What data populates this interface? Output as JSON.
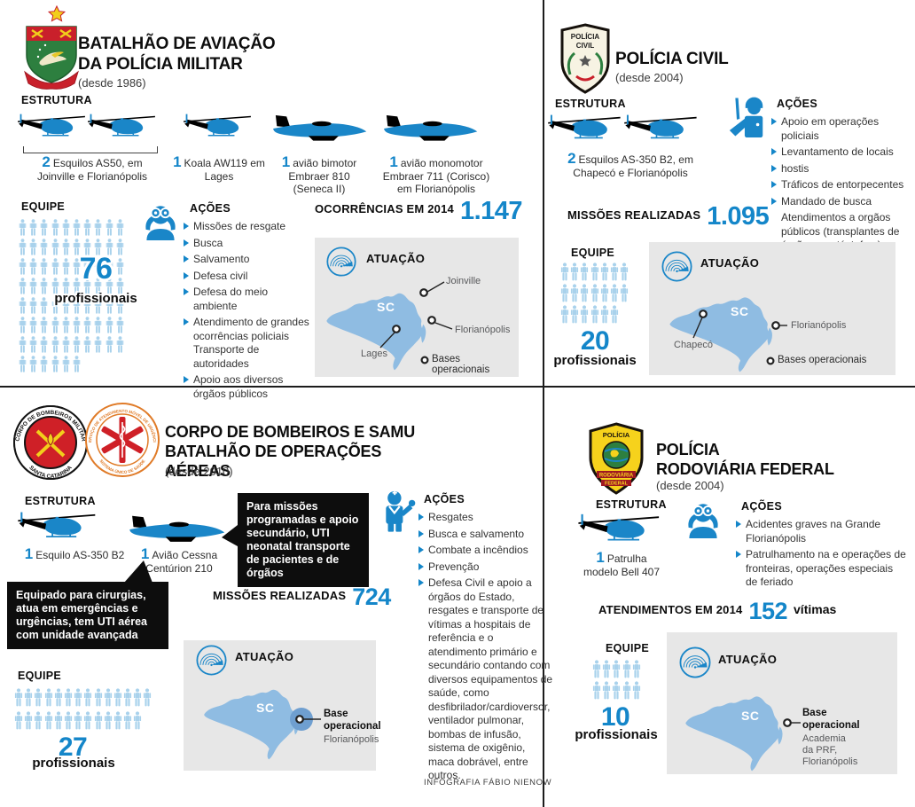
{
  "labels": {
    "estrutura": "ESTRUTURA",
    "equipe": "EQUIPE",
    "acoes": "AÇÕES",
    "atuacao": "ATUAÇÃO",
    "bases": "Bases operacionais",
    "profissionais": "profissionais",
    "sc": "SC"
  },
  "credit": "INFOGRAFIA FÁBIO NIENOW",
  "colors": {
    "accent_blue": "#1a86c8",
    "number_blue": "#1486c9",
    "person_blue": "#a9d2ec",
    "map_state_blue": "#8fbce2",
    "panel_gray": "#e7e7e7",
    "callout_black": "#0d0d0d",
    "badge_red": "#c9202b",
    "badge_green": "#2d7f3f",
    "badge_yellow": "#f6d21c"
  },
  "pm": {
    "title1": "BATALHÃO DE AVIAÇÃO",
    "title2": "DA POLÍCIA MILITAR",
    "since": "(desde 1986)",
    "fleet": [
      {
        "num": "2",
        "text": "Esquilos AS50, em Joinville e Florianópolis"
      },
      {
        "num": "1",
        "text": "Koala AW119 em Lages"
      },
      {
        "num": "1",
        "text": "avião bimotor Embraer 810 (Seneca II)"
      },
      {
        "num": "1",
        "text": "avião monomotor Embraer 711 (Corisco) em Florianópolis"
      }
    ],
    "team": {
      "count": "76",
      "rows": [
        10,
        10,
        10,
        10,
        10,
        10,
        10,
        6
      ]
    },
    "actions": [
      {
        "t": "Missões de resgate",
        "b": true
      },
      {
        "t": "Busca",
        "b": true
      },
      {
        "t": "Salvamento",
        "b": true
      },
      {
        "t": "Defesa civil",
        "b": true
      },
      {
        "t": "Defesa do meio ambiente",
        "b": true
      },
      {
        "t": "Atendimento de grandes ocorrências policiais Transporte de autoridades",
        "b": true
      },
      {
        "t": "Apoio aos diversos órgãos públicos",
        "b": true
      }
    ],
    "stat": {
      "label": "OCORRÊNCIAS EM 2014",
      "value": "1.147"
    },
    "map": {
      "joinville": "Joinville",
      "florianopolis": "Florianópolis",
      "lages": "Lages"
    }
  },
  "pc": {
    "title": "POLÍCIA CIVIL",
    "since": "(desde 2004)",
    "badge_line1": "POLÍCIA",
    "badge_line2": "CIVIL",
    "fleet": [
      {
        "num": "2",
        "text": "Esquilos AS-350 B2, em Chapecó e Florianópolis"
      }
    ],
    "team": {
      "count": "20",
      "rows": [
        7,
        7,
        6
      ]
    },
    "actions": [
      {
        "t": "Apoio em operações policiais",
        "b": true
      },
      {
        "t": "Levantamento de locais",
        "b": true
      },
      {
        "t": "hostis",
        "b": true
      },
      {
        "t": "Tráficos de entorpecentes",
        "b": true
      },
      {
        "t": "Mandado de busca",
        "b": true
      },
      {
        "t": "Atendimentos a orgãos públicos (transplantes de órgãos e catástofres)",
        "b": false
      }
    ],
    "stat": {
      "label": "MISSÕES REALIZADAS",
      "value": "1.095"
    },
    "map": {
      "chapeco": "Chapecó",
      "florianopolis": "Florianópolis"
    }
  },
  "cb": {
    "title1": "CORPO DE BOMBEIROS E SAMU",
    "title2": "BATALHÃO DE OPERAÇÕES AÉREAS",
    "since": "(desde 2010)",
    "badge_ring_top": "CORPO DE BOMBEIROS MILITAR",
    "badge_ring_bottom": "SANTA CATARINA",
    "samu_ring_top": "SERVIÇO DE ATENDIMENTO MÓVEL DE URGÊNCIA",
    "samu_ring_bottom": "SISTEMA ÚNICO DE SAÚDE",
    "fleet": [
      {
        "num": "1",
        "text": "Esquilo AS-350 B2"
      },
      {
        "num": "1",
        "text": "Avião Cessna Centúrion 210"
      }
    ],
    "callout_plane": "Para missões programadas e apoio secundário, UTI neonatal transporte de pacientes e de órgãos",
    "callout_heli": "Equipado para cirurgias, atua em emergências e urgências, tem UTI aérea com unidade avançada",
    "team": {
      "count": "27",
      "rows": [
        14,
        13
      ]
    },
    "actions": [
      {
        "t": "Resgates",
        "b": true
      },
      {
        "t": "Busca e salvamento",
        "b": true
      },
      {
        "t": "Combate a incêndios",
        "b": true
      },
      {
        "t": "Prevenção",
        "b": true
      },
      {
        "t": "Defesa Civil e apoio a órgãos do Estado, resgates e transporte de vítimas a hospitais de referência e o atendimento primário e secundário contando com diversos equipamentos de saúde, como desfibrilador/cardioversor, ventilador pulmonar, bombas de infusão, sistema de oxigênio, maca dobrável, entre outros.",
        "b": true
      }
    ],
    "stat": {
      "label": "MISSÕES REALIZADAS",
      "value": "724"
    },
    "map": {
      "base_bold": "Base operacional",
      "base_sub": "Florianópolis"
    }
  },
  "prf": {
    "title1": "POLÍCIA",
    "title2": "RODOVIÁRIA FEDERAL",
    "since": "(desde 2004)",
    "badge_top": "POLÍCIA",
    "badge_mid": "RODOVIÁRIA",
    "badge_bot": "FEDERAL",
    "fleet": [
      {
        "num": "1",
        "text": "Patrulha modelo Bell 407"
      }
    ],
    "team": {
      "count": "10",
      "rows": [
        5,
        5
      ]
    },
    "actions": [
      {
        "t": "Acidentes graves na Grande Florianópolis",
        "b": true
      },
      {
        "t": "Patrulhamento na e operações de fronteiras, operações especiais de feriado",
        "b": true
      }
    ],
    "stat": {
      "label": "ATENDIMENTOS EM 2014",
      "value": "152",
      "suffix": "vítimas"
    },
    "map": {
      "base_bold": "Base operacional",
      "base_sub": "Academia da PRF, Florianópolis"
    }
  }
}
